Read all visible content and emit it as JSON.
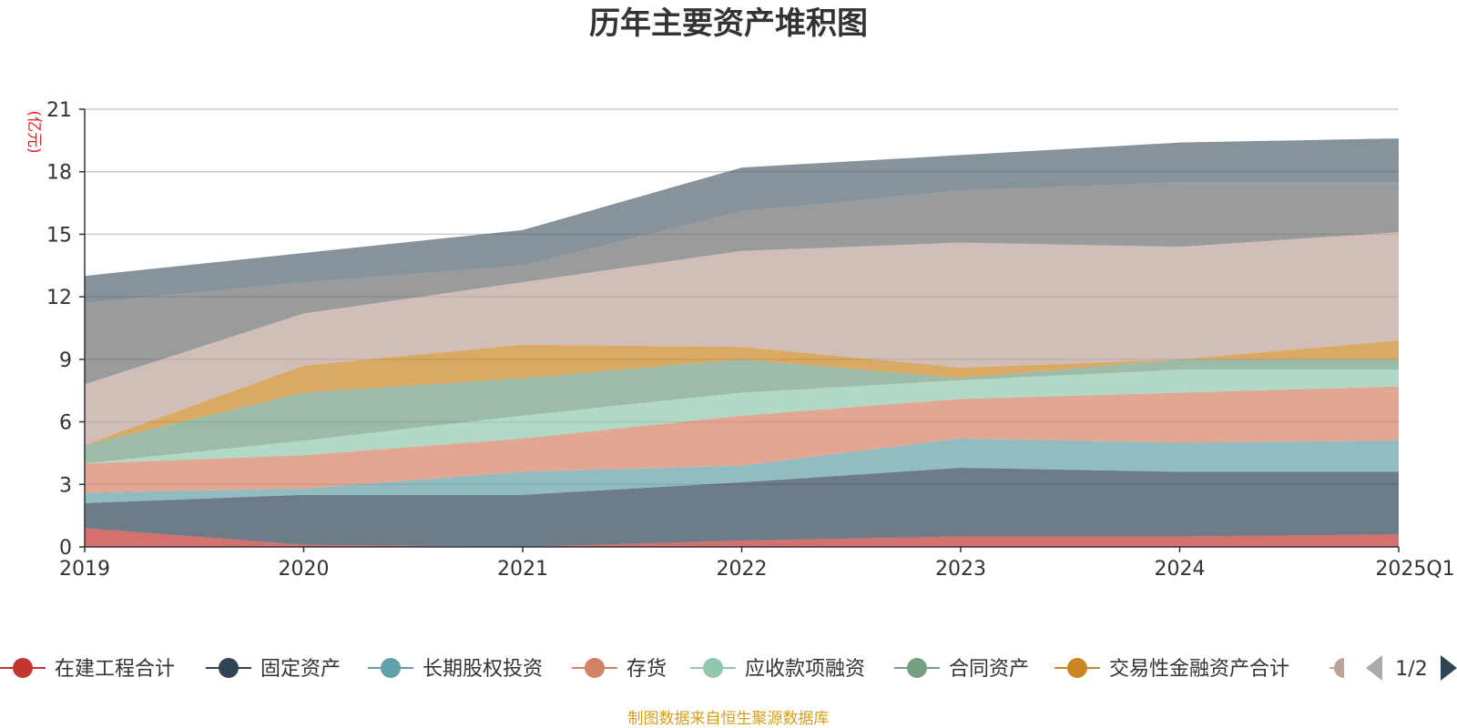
{
  "chart_data": {
    "type": "area",
    "stacked": true,
    "title": "历年主要资产堆积图",
    "ylabel": "(亿元)",
    "ylim": [
      0,
      21
    ],
    "yticks": [
      0,
      3,
      6,
      9,
      12,
      15,
      18,
      21
    ],
    "categories": [
      "2019",
      "2020",
      "2021",
      "2022",
      "2023",
      "2024",
      "2025Q1"
    ],
    "grid": true,
    "series": [
      {
        "name": "在建工程合计",
        "color": "#c23531",
        "values": [
          0.9,
          0.1,
          0.0,
          0.3,
          0.5,
          0.5,
          0.6
        ]
      },
      {
        "name": "固定资产",
        "color": "#2f4554",
        "values": [
          1.2,
          2.4,
          2.5,
          2.8,
          3.3,
          3.1,
          3.0
        ]
      },
      {
        "name": "长期股权投资",
        "color": "#61a0a8",
        "values": [
          0.5,
          0.3,
          1.1,
          0.8,
          1.4,
          1.4,
          1.5
        ]
      },
      {
        "name": "存货",
        "color": "#d48265",
        "values": [
          1.4,
          1.6,
          1.6,
          2.4,
          1.9,
          2.4,
          2.6
        ]
      },
      {
        "name": "应收款项融资",
        "color": "#91c7ae",
        "values": [
          0.0,
          0.7,
          1.1,
          1.1,
          0.9,
          1.1,
          0.8
        ]
      },
      {
        "name": "合同资产",
        "color": "#749f83",
        "values": [
          0.9,
          2.3,
          1.8,
          1.6,
          0.1,
          0.5,
          0.5
        ]
      },
      {
        "name": "交易性金融资产合计",
        "color": "#ca8622",
        "values": [
          0.0,
          1.3,
          1.6,
          0.6,
          0.5,
          0.0,
          0.9
        ]
      },
      {
        "name": "",
        "color": "#bda29a",
        "values": [
          2.9,
          2.5,
          3.0,
          4.6,
          6.0,
          5.4,
          5.2
        ]
      },
      {
        "name": "",
        "color": "#6e7074",
        "values": [
          3.9,
          1.5,
          0.8,
          1.9,
          2.5,
          3.1,
          2.4
        ]
      },
      {
        "name": "",
        "color": "#546570",
        "values": [
          1.3,
          1.4,
          1.7,
          2.1,
          1.7,
          1.9,
          2.1
        ]
      }
    ]
  },
  "legend": {
    "page_indicator": "1/2"
  },
  "footer": {
    "source": "制图数据来自恒生聚源数据库"
  }
}
